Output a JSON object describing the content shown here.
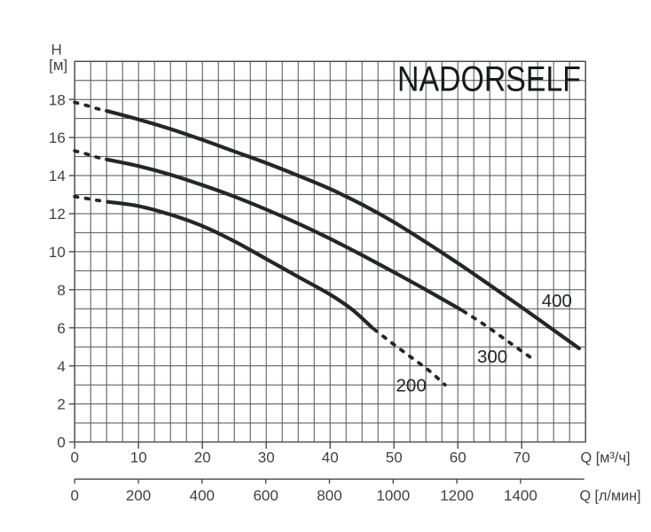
{
  "title": "NADORSELF",
  "colors": {
    "background": "#ffffff",
    "grid": "#4e5156",
    "axis": "#46494e",
    "curve": "#242629",
    "tick_text": "#3e4145",
    "curve_label_text": "#212326",
    "title_text": "#17191c"
  },
  "chart_data": {
    "type": "line",
    "title": "NADORSELF",
    "y_axis": {
      "title_line1": "H",
      "title_line2": "[м]",
      "min": 0,
      "max": 20,
      "minor_step": 1,
      "ticks": [
        0,
        2,
        4,
        6,
        8,
        10,
        12,
        14,
        16,
        18
      ]
    },
    "x_axis": {
      "label": "Q [м³/ч]",
      "min": 0,
      "max": 80,
      "minor_step": 2.5,
      "ticks": [
        0,
        10,
        20,
        30,
        40,
        50,
        60,
        70
      ]
    },
    "x_axis_secondary": {
      "label": "Q [л/мин]",
      "min": 0,
      "max": 1604,
      "ticks": [
        0,
        200,
        400,
        600,
        800,
        1000,
        1200,
        1400
      ]
    },
    "series": [
      {
        "name": "400",
        "label": "400",
        "label_at": [
          75.5,
          7.45
        ],
        "dash_head": [
          [
            0,
            17.85
          ],
          [
            1.7,
            17.7
          ],
          [
            3.4,
            17.53
          ],
          [
            5,
            17.4
          ]
        ],
        "solid": [
          [
            5,
            17.4
          ],
          [
            10,
            16.95
          ],
          [
            15,
            16.45
          ],
          [
            20,
            15.88
          ],
          [
            25,
            15.27
          ],
          [
            30,
            14.66
          ],
          [
            35,
            14.0
          ],
          [
            40,
            13.3
          ],
          [
            45,
            12.48
          ],
          [
            50,
            11.55
          ],
          [
            55,
            10.5
          ],
          [
            60,
            9.4
          ],
          [
            65,
            8.25
          ],
          [
            70,
            7.08
          ],
          [
            75,
            5.88
          ],
          [
            79,
            4.92
          ]
        ],
        "dash_tail": []
      },
      {
        "name": "300",
        "label": "300",
        "label_at": [
          65.4,
          4.5
        ],
        "dash_head": [
          [
            0,
            15.3
          ],
          [
            1.7,
            15.15
          ],
          [
            3.4,
            14.97
          ],
          [
            5,
            14.85
          ]
        ],
        "solid": [
          [
            5,
            14.85
          ],
          [
            10,
            14.5
          ],
          [
            15,
            14.05
          ],
          [
            20,
            13.5
          ],
          [
            25,
            12.9
          ],
          [
            30,
            12.22
          ],
          [
            35,
            11.48
          ],
          [
            40,
            10.68
          ],
          [
            45,
            9.82
          ],
          [
            50,
            8.92
          ],
          [
            55,
            8.0
          ],
          [
            60.5,
            6.95
          ]
        ],
        "dash_tail": [
          [
            60.5,
            6.95
          ],
          [
            64,
            6.2
          ],
          [
            68,
            5.25
          ],
          [
            72,
            4.3
          ]
        ]
      },
      {
        "name": "200",
        "label": "200",
        "label_at": [
          52.7,
          3.0
        ],
        "dash_head": [
          [
            0,
            12.9
          ],
          [
            1.8,
            12.8
          ],
          [
            3.6,
            12.7
          ],
          [
            5.2,
            12.62
          ]
        ],
        "solid": [
          [
            5.2,
            12.62
          ],
          [
            10,
            12.4
          ],
          [
            15,
            11.95
          ],
          [
            20,
            11.35
          ],
          [
            25,
            10.55
          ],
          [
            30,
            9.62
          ],
          [
            35,
            8.68
          ],
          [
            40,
            7.75
          ],
          [
            43.5,
            6.95
          ],
          [
            46.6,
            6.0
          ]
        ],
        "dash_tail": [
          [
            46.6,
            6.0
          ],
          [
            49.5,
            5.25
          ],
          [
            52.5,
            4.5
          ],
          [
            55.5,
            3.75
          ],
          [
            58,
            3.0
          ]
        ]
      }
    ]
  }
}
